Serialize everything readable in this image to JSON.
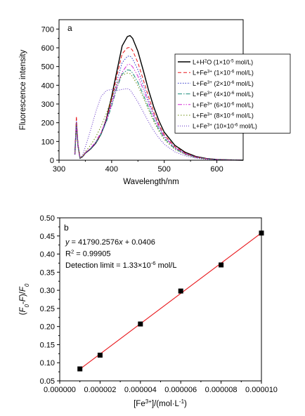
{
  "chart_data": [
    {
      "panel_label": "a",
      "type": "line",
      "xlabel": "Wavelength/nm",
      "ylabel": "Fluorescence intensity",
      "xlim": [
        300,
        650
      ],
      "ylim": [
        0,
        750
      ],
      "xticks": [
        300,
        400,
        500,
        600
      ],
      "yticks": [
        0,
        100,
        200,
        300,
        400,
        500,
        600,
        700
      ],
      "legend_position": "right",
      "series": [
        {
          "name": "L+H2O (1×10⁻⁵ mol/L)",
          "color": "#000000",
          "dash": "",
          "legend_parts": [
            [
              "L+H",
              ""
            ],
            [
              "2",
              "sup"
            ],
            [
              "O (1×10",
              ""
            ],
            [
              "-5",
              "sup"
            ],
            [
              " mol/L)",
              ""
            ]
          ],
          "x": [
            330,
            333,
            336,
            340,
            345,
            350,
            360,
            370,
            380,
            390,
            400,
            410,
            420,
            430,
            435,
            440,
            450,
            460,
            470,
            480,
            490,
            500,
            520,
            540,
            560,
            580,
            600,
            620,
            650
          ],
          "y": [
            30,
            200,
            80,
            10,
            20,
            38,
            60,
            92,
            140,
            220,
            340,
            475,
            610,
            660,
            665,
            650,
            580,
            480,
            375,
            285,
            210,
            150,
            80,
            42,
            20,
            9,
            4,
            2,
            0
          ]
        },
        {
          "name": "L+Fe³⁺ (1×10⁻⁶ mol/L)",
          "color": "#e8161b",
          "dash": "5,3",
          "legend_parts": [
            [
              "L+Fe",
              ""
            ],
            [
              "3+",
              "sup"
            ],
            [
              " (1×10",
              ""
            ],
            [
              "-6",
              "sup"
            ],
            [
              " mol/L)",
              ""
            ]
          ],
          "x": [
            330,
            333,
            336,
            340,
            345,
            350,
            360,
            370,
            380,
            390,
            400,
            410,
            420,
            430,
            435,
            440,
            450,
            460,
            470,
            480,
            490,
            500,
            520,
            540,
            560,
            580,
            600,
            620,
            650
          ],
          "y": [
            30,
            235,
            90,
            12,
            22,
            40,
            62,
            94,
            140,
            215,
            325,
            450,
            568,
            600,
            602,
            585,
            520,
            430,
            340,
            258,
            190,
            136,
            72,
            38,
            18,
            8,
            4,
            2,
            0
          ]
        },
        {
          "name": "L+Fe³⁺ (2×10⁻⁶ mol/L)",
          "color": "#2b33c8",
          "dash": "1.5,2",
          "legend_parts": [
            [
              "L+Fe",
              ""
            ],
            [
              "3+",
              "sup"
            ],
            [
              " (2×10",
              ""
            ],
            [
              "-6",
              "sup"
            ],
            [
              " mol/L)",
              ""
            ]
          ],
          "x": [
            330,
            333,
            336,
            340,
            345,
            350,
            360,
            370,
            380,
            390,
            400,
            410,
            420,
            430,
            435,
            440,
            450,
            460,
            470,
            480,
            490,
            500,
            520,
            540,
            560,
            580,
            600,
            620,
            650
          ],
          "y": [
            30,
            210,
            85,
            11,
            21,
            39,
            61,
            93,
            140,
            210,
            308,
            420,
            520,
            555,
            556,
            540,
            482,
            400,
            318,
            242,
            180,
            128,
            68,
            35,
            17,
            8,
            4,
            2,
            0
          ]
        },
        {
          "name": "L+Fe³⁺ (4×10⁻⁶ mol/L)",
          "color": "#188a7a",
          "dash": "6,2,1.5,2",
          "legend_parts": [
            [
              "L+Fe",
              ""
            ],
            [
              "3+",
              "sup"
            ],
            [
              " (4×10",
              ""
            ],
            [
              "-6",
              "sup"
            ],
            [
              " mol/L)",
              ""
            ]
          ],
          "x": [
            330,
            333,
            336,
            340,
            345,
            350,
            360,
            370,
            380,
            390,
            400,
            410,
            420,
            430,
            435,
            440,
            450,
            460,
            470,
            480,
            490,
            500,
            520,
            540,
            560,
            580,
            600,
            620,
            650
          ],
          "y": [
            30,
            200,
            82,
            11,
            21,
            40,
            62,
            95,
            140,
            205,
            290,
            385,
            460,
            482,
            480,
            465,
            415,
            350,
            282,
            218,
            163,
            117,
            62,
            32,
            15,
            7,
            3,
            2,
            0
          ]
        },
        {
          "name": "L+Fe³⁺ (6×10⁻⁶ mol/L)",
          "color": "#d22ad2",
          "dash": "6,2,1.5,2,1.5,2",
          "legend_parts": [
            [
              "L+Fe",
              ""
            ],
            [
              "3+",
              "sup"
            ],
            [
              " (6×10",
              ""
            ],
            [
              "-6",
              "sup"
            ],
            [
              " mol/L)",
              ""
            ]
          ],
          "x": [
            330,
            333,
            336,
            340,
            345,
            350,
            360,
            370,
            380,
            390,
            400,
            410,
            420,
            430,
            435,
            440,
            450,
            460,
            470,
            480,
            490,
            500,
            520,
            540,
            560,
            580,
            600,
            620,
            650
          ],
          "y": [
            30,
            202,
            82,
            11,
            21,
            40,
            64,
            100,
            150,
            215,
            298,
            395,
            470,
            510,
            512,
            498,
            448,
            378,
            305,
            236,
            176,
            126,
            67,
            34,
            16,
            7,
            3,
            2,
            0
          ]
        },
        {
          "name": "L+Fe³⁺ (8×10⁻⁶ mol/L)",
          "color": "#6b8e0f",
          "dash": "1.5,2.5",
          "legend_parts": [
            [
              "L+Fe",
              ""
            ],
            [
              "3+",
              "sup"
            ],
            [
              " (8×10",
              ""
            ],
            [
              "-6",
              "sup"
            ],
            [
              " mol/L)",
              ""
            ]
          ],
          "x": [
            330,
            333,
            336,
            340,
            345,
            350,
            360,
            370,
            380,
            390,
            400,
            410,
            420,
            430,
            435,
            440,
            450,
            460,
            470,
            480,
            490,
            500,
            520,
            540,
            560,
            580,
            600,
            620,
            650
          ],
          "y": [
            30,
            198,
            80,
            11,
            22,
            45,
            80,
            125,
            182,
            250,
            330,
            410,
            455,
            465,
            462,
            445,
            398,
            335,
            270,
            208,
            155,
            110,
            58,
            30,
            14,
            6,
            3,
            1,
            0
          ]
        },
        {
          "name": "L+Fe³⁺ (10×10⁻⁶ mol/L)",
          "color": "#5d2bc4",
          "dash": "1,2",
          "legend_parts": [
            [
              "L+Fe",
              ""
            ],
            [
              "3+",
              "sup"
            ],
            [
              " (10×10",
              ""
            ],
            [
              "-6",
              "sup"
            ],
            [
              " mol/L)",
              ""
            ]
          ],
          "x": [
            330,
            333,
            336,
            340,
            345,
            350,
            360,
            370,
            380,
            390,
            400,
            410,
            420,
            430,
            435,
            440,
            450,
            460,
            470,
            480,
            490,
            500,
            520,
            540,
            560,
            580,
            600,
            620,
            650
          ],
          "y": [
            30,
            195,
            80,
            12,
            30,
            70,
            160,
            260,
            340,
            372,
            378,
            372,
            378,
            382,
            375,
            355,
            310,
            258,
            205,
            158,
            118,
            85,
            45,
            23,
            11,
            5,
            2,
            1,
            0
          ]
        }
      ]
    },
    {
      "panel_label": "b",
      "type": "scatter",
      "xlabel_parts": [
        [
          "[Fe",
          ""
        ],
        [
          "3+",
          "sup"
        ],
        [
          "]/(mol·L",
          ""
        ],
        [
          "-1",
          "sup"
        ],
        [
          ")",
          ""
        ]
      ],
      "ylabel_parts": [
        [
          "(",
          ""
        ],
        [
          "F",
          "i"
        ],
        [
          "0",
          "subi"
        ],
        [
          "-",
          ""
        ],
        [
          "F",
          "i"
        ],
        [
          ")/",
          ""
        ],
        [
          "F",
          "i"
        ],
        [
          "0",
          "subi"
        ]
      ],
      "xlim": [
        0,
        1e-05
      ],
      "ylim": [
        0.05,
        0.5
      ],
      "xtick_labels": [
        "0.000000",
        "0.000002",
        "0.000004",
        "0.000006",
        "0.000008",
        "0.000010"
      ],
      "ytick_labels": [
        "0.05",
        "0.10",
        "0.15",
        "0.20",
        "0.25",
        "0.30",
        "0.35",
        "0.40",
        "0.45",
        "0.50"
      ],
      "x": [
        1e-06,
        2e-06,
        4e-06,
        6e-06,
        8e-06,
        1e-05
      ],
      "y": [
        0.083,
        0.121,
        0.207,
        0.298,
        0.37,
        0.458
      ],
      "marker_color": "#000000",
      "fit_line": {
        "slope": 41790.2576,
        "intercept": 0.0406,
        "color": "#e8161b",
        "x_range": [
          1e-06,
          1e-05
        ]
      },
      "annotations": [
        [
          [
            "y",
            "i"
          ],
          [
            " = 41790.2576",
            ""
          ],
          [
            "x",
            "i"
          ],
          [
            " + 0.0406",
            ""
          ]
        ],
        [
          [
            "R",
            ""
          ],
          [
            "2",
            "sup"
          ],
          [
            " = 0.99905",
            ""
          ]
        ],
        [
          [
            "Detection limit = 1.33×10",
            ""
          ],
          [
            "-6",
            "sup"
          ],
          [
            " mol/L",
            ""
          ]
        ]
      ]
    }
  ]
}
